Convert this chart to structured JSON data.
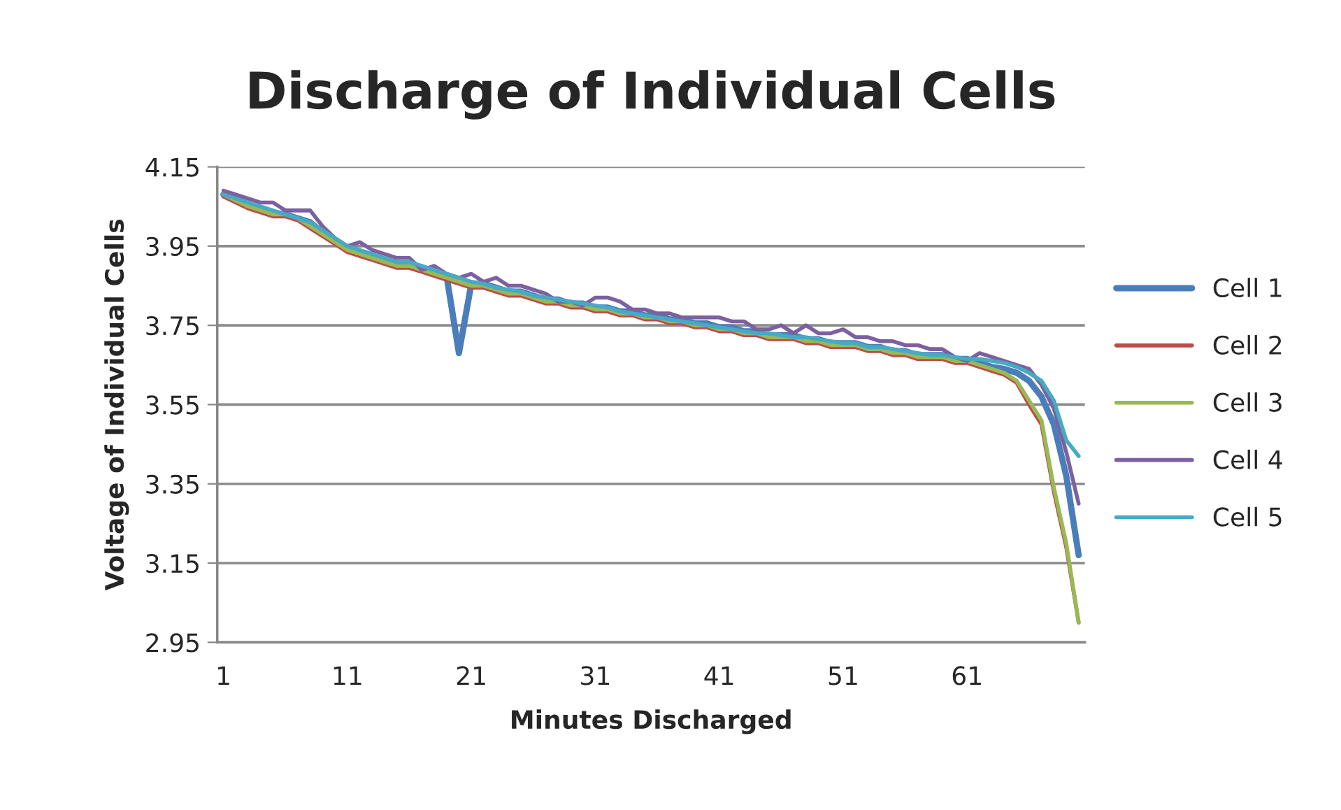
{
  "chart_data": {
    "type": "line",
    "title": "Discharge of Individual Cells",
    "xlabel": "Minutes Discharged",
    "ylabel": "Voltage of Individual Cells",
    "categories": [
      "1",
      null,
      null,
      null,
      null,
      null,
      null,
      null,
      null,
      null,
      "11",
      null,
      null,
      null,
      null,
      null,
      null,
      null,
      null,
      null,
      "21",
      null,
      null,
      null,
      null,
      null,
      null,
      null,
      null,
      null,
      "31",
      null,
      null,
      null,
      null,
      null,
      null,
      null,
      null,
      null,
      "41",
      null,
      null,
      null,
      null,
      null,
      null,
      null,
      null,
      null,
      "51",
      null,
      null,
      null,
      null,
      null,
      null,
      null,
      null,
      null,
      "61",
      null,
      null,
      null,
      null,
      null,
      null,
      null,
      null,
      null
    ],
    "ylim": [
      2.95,
      4.15
    ],
    "yticks": [
      {
        "value": 2.95,
        "label": "2.95"
      },
      3.15,
      3.35,
      3.55,
      3.75,
      3.95,
      4.15
    ],
    "grid": "y",
    "legend": "right",
    "marker": "none",
    "line_style": "solid",
    "series": [
      {
        "name": "Cell 1",
        "color": "#4a7ebb",
        "values": [
          4.08,
          4.07,
          4.055,
          4.045,
          4.035,
          4.03,
          4.02,
          4.01,
          3.985,
          3.96,
          3.945,
          3.935,
          3.925,
          3.915,
          3.905,
          3.905,
          3.895,
          3.885,
          3.875,
          3.68,
          3.855,
          3.855,
          3.845,
          3.835,
          3.835,
          3.825,
          3.815,
          3.815,
          3.805,
          3.805,
          3.795,
          3.795,
          3.785,
          3.785,
          3.775,
          3.775,
          3.765,
          3.765,
          3.755,
          3.755,
          3.745,
          3.745,
          3.735,
          3.735,
          3.725,
          3.725,
          3.725,
          3.715,
          3.715,
          3.705,
          3.705,
          3.705,
          3.695,
          3.695,
          3.685,
          3.685,
          3.675,
          3.675,
          3.675,
          3.665,
          3.665,
          3.655,
          3.645,
          3.64,
          3.63,
          3.61,
          3.57,
          3.5,
          3.37,
          3.17
        ]
      },
      {
        "name": "Cell 2",
        "color": "#be4b48",
        "values": [
          4.075,
          4.06,
          4.045,
          4.035,
          4.025,
          4.025,
          4.015,
          3.995,
          3.975,
          3.955,
          3.935,
          3.925,
          3.915,
          3.905,
          3.895,
          3.895,
          3.885,
          3.875,
          3.865,
          3.855,
          3.845,
          3.845,
          3.835,
          3.825,
          3.825,
          3.815,
          3.805,
          3.805,
          3.795,
          3.795,
          3.785,
          3.785,
          3.775,
          3.775,
          3.765,
          3.765,
          3.755,
          3.755,
          3.745,
          3.745,
          3.735,
          3.735,
          3.725,
          3.725,
          3.715,
          3.715,
          3.715,
          3.705,
          3.705,
          3.695,
          3.695,
          3.695,
          3.685,
          3.685,
          3.675,
          3.675,
          3.665,
          3.665,
          3.665,
          3.655,
          3.655,
          3.645,
          3.635,
          3.625,
          3.605,
          3.55,
          3.5,
          3.33,
          3.19,
          3.0
        ]
      },
      {
        "name": "Cell 3",
        "color": "#98b954",
        "values": [
          4.08,
          4.065,
          4.05,
          4.04,
          4.03,
          4.03,
          4.02,
          4.0,
          3.98,
          3.96,
          3.94,
          3.93,
          3.92,
          3.91,
          3.9,
          3.9,
          3.89,
          3.88,
          3.87,
          3.86,
          3.85,
          3.85,
          3.84,
          3.83,
          3.83,
          3.82,
          3.81,
          3.81,
          3.8,
          3.8,
          3.79,
          3.79,
          3.78,
          3.78,
          3.77,
          3.77,
          3.76,
          3.76,
          3.75,
          3.75,
          3.74,
          3.74,
          3.73,
          3.73,
          3.72,
          3.72,
          3.72,
          3.71,
          3.71,
          3.7,
          3.7,
          3.7,
          3.69,
          3.69,
          3.68,
          3.68,
          3.67,
          3.67,
          3.67,
          3.66,
          3.66,
          3.65,
          3.64,
          3.63,
          3.61,
          3.56,
          3.51,
          3.34,
          3.2,
          3.0
        ]
      },
      {
        "name": "Cell 4",
        "color": "#7d60a0",
        "values": [
          4.09,
          4.08,
          4.07,
          4.06,
          4.06,
          4.04,
          4.04,
          4.04,
          4.0,
          3.97,
          3.95,
          3.96,
          3.94,
          3.93,
          3.92,
          3.92,
          3.89,
          3.9,
          3.88,
          3.87,
          3.88,
          3.86,
          3.87,
          3.85,
          3.85,
          3.84,
          3.83,
          3.81,
          3.81,
          3.8,
          3.82,
          3.82,
          3.81,
          3.79,
          3.79,
          3.78,
          3.78,
          3.77,
          3.77,
          3.77,
          3.77,
          3.76,
          3.76,
          3.74,
          3.74,
          3.75,
          3.73,
          3.75,
          3.73,
          3.73,
          3.74,
          3.72,
          3.72,
          3.71,
          3.71,
          3.7,
          3.7,
          3.69,
          3.69,
          3.67,
          3.66,
          3.68,
          3.67,
          3.66,
          3.65,
          3.64,
          3.6,
          3.54,
          3.43,
          3.3
        ]
      },
      {
        "name": "Cell 5",
        "color": "#46aac5",
        "values": [
          4.08,
          4.07,
          4.06,
          4.05,
          4.04,
          4.03,
          4.02,
          4.01,
          3.99,
          3.97,
          3.95,
          3.94,
          3.93,
          3.92,
          3.91,
          3.91,
          3.9,
          3.89,
          3.88,
          3.87,
          3.86,
          3.855,
          3.845,
          3.84,
          3.835,
          3.825,
          3.82,
          3.815,
          3.81,
          3.805,
          3.8,
          3.795,
          3.785,
          3.78,
          3.775,
          3.77,
          3.765,
          3.76,
          3.755,
          3.75,
          3.745,
          3.74,
          3.735,
          3.73,
          3.73,
          3.725,
          3.72,
          3.72,
          3.715,
          3.71,
          3.705,
          3.705,
          3.695,
          3.695,
          3.69,
          3.685,
          3.68,
          3.675,
          3.675,
          3.67,
          3.665,
          3.665,
          3.66,
          3.655,
          3.645,
          3.63,
          3.61,
          3.56,
          3.46,
          3.42
        ]
      }
    ]
  }
}
